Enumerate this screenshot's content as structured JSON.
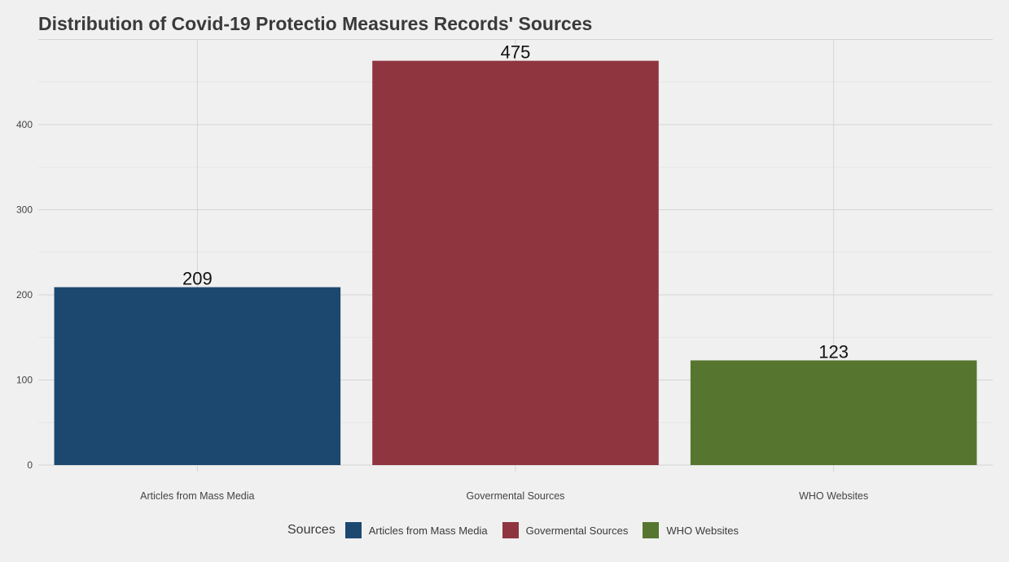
{
  "chart_data": {
    "type": "bar",
    "title": "Distribution of Covid-19 Protectio Measures Records' Sources",
    "xlabel": "",
    "ylabel": "",
    "categories": [
      "Articles from Mass Media",
      "Govermental Sources",
      "WHO Websites"
    ],
    "values": [
      209,
      475,
      123
    ],
    "colors": [
      "#1c4870",
      "#8f353f",
      "#56762f"
    ],
    "ylim": [
      0,
      500
    ],
    "yticks": [
      0,
      100,
      200,
      300,
      400
    ],
    "grid": true,
    "legend": {
      "title": "Sources",
      "position": "bottom",
      "entries": [
        "Articles from Mass Media",
        "Govermental Sources",
        "WHO Websites"
      ]
    }
  }
}
